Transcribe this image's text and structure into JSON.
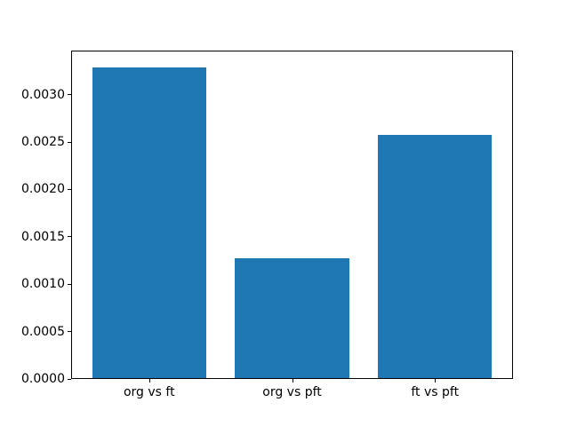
{
  "figure": {
    "background": "#ffffff"
  },
  "chart_data": {
    "type": "bar",
    "categories": [
      "org vs ft",
      "org vs pft",
      "ft vs pft"
    ],
    "values": [
      0.0033,
      0.00127,
      0.00258
    ],
    "title": "",
    "xlabel": "",
    "ylabel": "",
    "ylim": [
      0,
      0.003465
    ],
    "yticks": [
      0.0,
      0.0005,
      0.001,
      0.0015,
      0.002,
      0.0025,
      0.003
    ],
    "ytick_labels": [
      "0.0000",
      "0.0005",
      "0.0010",
      "0.0015",
      "0.0020",
      "0.0025",
      "0.0030"
    ],
    "bar_color": "#1f77b4",
    "bar_width_fraction": 0.8,
    "axis_color": "#000000",
    "grid": false,
    "legend_position": "none"
  }
}
